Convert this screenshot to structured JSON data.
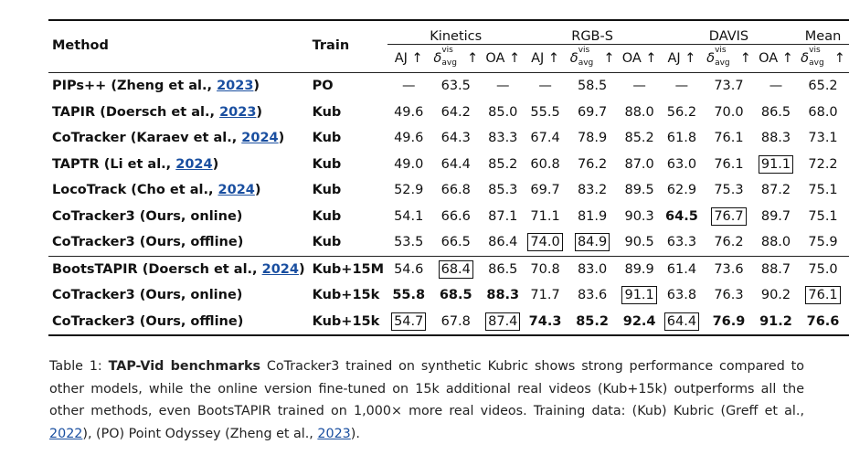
{
  "table": {
    "groups": [
      "Kinetics",
      "RGB-S",
      "DAVIS",
      "Mean"
    ],
    "method_header": "Method",
    "train_header": "Train",
    "metric_aj": "AJ ↑",
    "metric_oa": "OA ↑",
    "delta_label": "δ",
    "delta_sup": "vis",
    "delta_sub": "avg",
    "arrow": "↑",
    "rows": [
      {
        "name": "PIPs++ (Zheng et al., ",
        "year": "2023",
        "close": ")",
        "train": "PO",
        "v": [
          "—",
          "63.5",
          "—",
          "—",
          "58.5",
          "—",
          "—",
          "73.7",
          "—",
          "65.2"
        ]
      },
      {
        "name": "TAPIR (Doersch et al., ",
        "year": "2023",
        "close": ")",
        "train": "Kub",
        "v": [
          "49.6",
          "64.2",
          "85.0",
          "55.5",
          "69.7",
          "88.0",
          "56.2",
          "70.0",
          "86.5",
          "68.0"
        ]
      },
      {
        "name": "CoTracker (Karaev et al., ",
        "year": "2024",
        "close": ")",
        "train": "Kub",
        "v": [
          "49.6",
          "64.3",
          "83.3",
          "67.4",
          "78.9",
          "85.2",
          "61.8",
          "76.1",
          "88.3",
          "73.1"
        ]
      },
      {
        "name": "TAPTR (Li et al., ",
        "year": "2024",
        "close": ")",
        "train": "Kub",
        "v": [
          "49.0",
          "64.4",
          "85.2",
          "60.8",
          "76.2",
          "87.0",
          "63.0",
          "76.1",
          "91.1",
          "72.2"
        ]
      },
      {
        "name": "LocoTrack (Cho et al., ",
        "year": "2024",
        "close": ")",
        "train": "Kub",
        "v": [
          "52.9",
          "66.8",
          "85.3",
          "69.7",
          "83.2",
          "89.5",
          "62.9",
          "75.3",
          "87.2",
          "75.1"
        ]
      },
      {
        "name": "CoTracker3 (Ours, online)",
        "year": "",
        "close": "",
        "train": "Kub",
        "v": [
          "54.1",
          "66.6",
          "87.1",
          "71.1",
          "81.9",
          "90.3",
          "64.5",
          "76.7",
          "89.7",
          "75.1"
        ]
      },
      {
        "name": "CoTracker3 (Ours, offline)",
        "year": "",
        "close": "",
        "train": "Kub",
        "v": [
          "53.5",
          "66.5",
          "86.4",
          "74.0",
          "84.9",
          "90.5",
          "63.3",
          "76.2",
          "88.0",
          "75.9"
        ]
      },
      {
        "name": "BootsTAPIR (Doersch et al., ",
        "year": "2024",
        "close": ")",
        "train": "Kub+15M",
        "v": [
          "54.6",
          "68.4",
          "86.5",
          "70.8",
          "83.0",
          "89.9",
          "61.4",
          "73.6",
          "88.7",
          "75.0"
        ]
      },
      {
        "name": "CoTracker3 (Ours, online)",
        "year": "",
        "close": "",
        "train": "Kub+15k",
        "v": [
          "55.8",
          "68.5",
          "88.3",
          "71.7",
          "83.6",
          "91.1",
          "63.8",
          "76.3",
          "90.2",
          "76.1"
        ]
      },
      {
        "name": "CoTracker3 (Ours, offline)",
        "year": "",
        "close": "",
        "train": "Kub+15k",
        "v": [
          "54.7",
          "67.8",
          "87.4",
          "74.3",
          "85.2",
          "92.4",
          "64.4",
          "76.9",
          "91.2",
          "76.6"
        ]
      }
    ]
  },
  "caption": {
    "prefix": "Table 1:  ",
    "title": "TAP-Vid benchmarks",
    "text1": " CoTracker3 trained on synthetic Kubric shows strong performance compared to other models, while the online version fine-tuned on 15k additional real videos (Kub+15k) outperforms all the other methods, even BootsTAPIR trained on 1,000× more real videos. Training data: (Kub) Kubric (Greff et al., ",
    "cite1": "2022",
    "text2": "), (PO) Point Odyssey (Zheng et al., ",
    "cite2": "2023",
    "text3": ")."
  }
}
